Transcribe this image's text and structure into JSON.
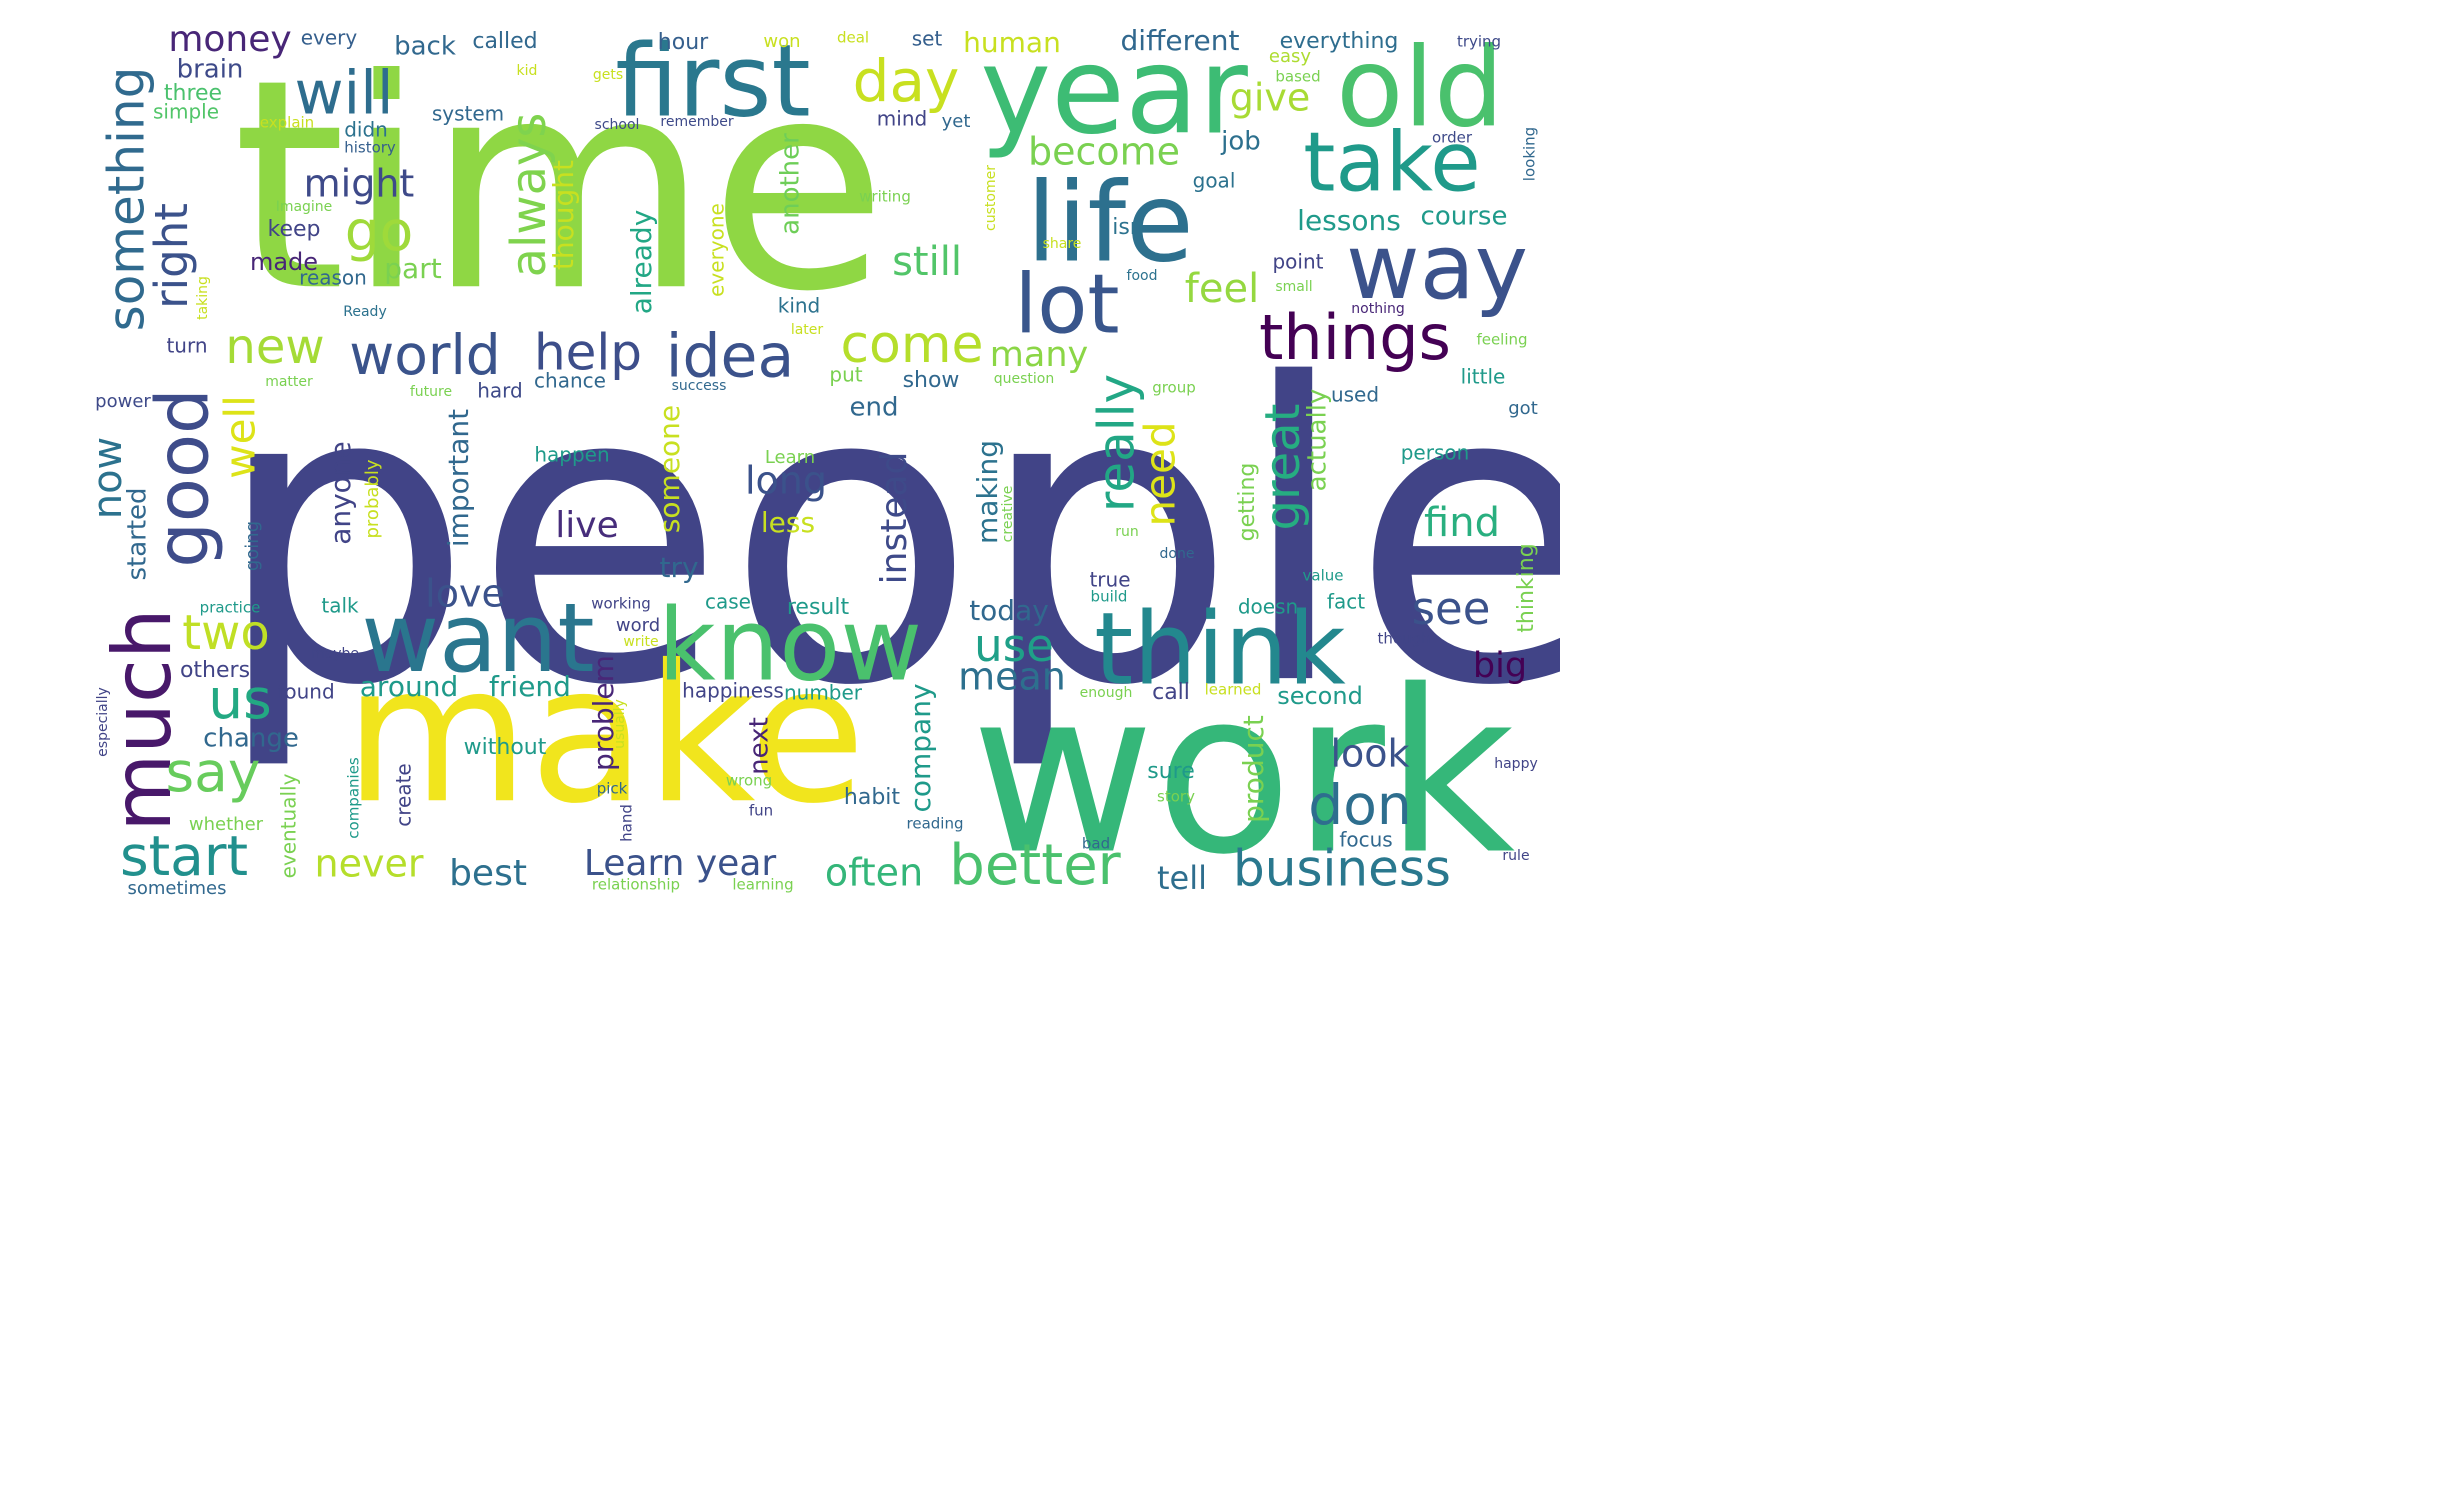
{
  "words": [
    {
      "text": "people",
      "color": "#414487"
    },
    {
      "text": "time",
      "color": "#8fd744"
    },
    {
      "text": "work",
      "color": "#35b779"
    },
    {
      "text": "make",
      "color": "#f1e51d"
    },
    {
      "text": "year",
      "color": "#3dbc74"
    },
    {
      "text": "old",
      "color": "#4ac16d"
    },
    {
      "text": "first",
      "color": "#2a788e"
    },
    {
      "text": "life",
      "color": "#2d708e"
    },
    {
      "text": "think",
      "color": "#23888e"
    },
    {
      "text": "know",
      "color": "#4ac16d"
    },
    {
      "text": "want",
      "color": "#2a768e"
    },
    {
      "text": "way",
      "color": "#3b528b"
    },
    {
      "text": "take",
      "color": "#1f9a8a"
    },
    {
      "text": "lot",
      "color": "#39568c"
    },
    {
      "text": "good",
      "color": "#3e4c8a"
    },
    {
      "text": "much",
      "color": "#48186a"
    },
    {
      "text": "things",
      "color": "#440154"
    },
    {
      "text": "world",
      "color": "#3a538b"
    },
    {
      "text": "idea",
      "color": "#3b528b"
    },
    {
      "text": "help",
      "color": "#3d4e8a"
    },
    {
      "text": "come",
      "color": "#b5de2b"
    },
    {
      "text": "will",
      "color": "#2e6d8e"
    },
    {
      "text": "day",
      "color": "#c8e020"
    },
    {
      "text": "start",
      "color": "#21908d"
    },
    {
      "text": "better",
      "color": "#4ac16d"
    },
    {
      "text": "business",
      "color": "#2a788e"
    },
    {
      "text": "don",
      "color": "#2e6e8e"
    },
    {
      "text": "go",
      "color": "#9fda3a"
    },
    {
      "text": "us",
      "color": "#23a983"
    },
    {
      "text": "say",
      "color": "#67cc5c"
    },
    {
      "text": "two",
      "color": "#c0df25"
    },
    {
      "text": "new",
      "color": "#a5db36"
    },
    {
      "text": "really",
      "color": "#22a785"
    },
    {
      "text": "need",
      "color": "#dde318"
    },
    {
      "text": "great",
      "color": "#26ad81"
    },
    {
      "text": "use",
      "color": "#1fa088"
    },
    {
      "text": "see",
      "color": "#3b528b"
    },
    {
      "text": "always",
      "color": "#7fd34e"
    },
    {
      "text": "something",
      "color": "#306a8e"
    },
    {
      "text": "right",
      "color": "#3b528b"
    },
    {
      "text": "well",
      "color": "#dde318"
    },
    {
      "text": "now",
      "color": "#2c728e"
    },
    {
      "text": "might",
      "color": "#3e4a89"
    },
    {
      "text": "still",
      "color": "#52c569"
    },
    {
      "text": "become",
      "color": "#7ad151"
    },
    {
      "text": "give",
      "color": "#a8db34"
    },
    {
      "text": "feel",
      "color": "#95d840"
    },
    {
      "text": "many",
      "color": "#8bd646"
    },
    {
      "text": "mean",
      "color": "#2d708e"
    },
    {
      "text": "find",
      "color": "#29af7f"
    },
    {
      "text": "big",
      "color": "#440154"
    },
    {
      "text": "look",
      "color": "#3b528b"
    },
    {
      "text": "long",
      "color": "#3b528b"
    },
    {
      "text": "live",
      "color": "#472d7b"
    },
    {
      "text": "love",
      "color": "#3b528b"
    },
    {
      "text": "never",
      "color": "#b5de2b"
    },
    {
      "text": "best",
      "color": "#2d708e"
    },
    {
      "text": "often",
      "color": "#34b679"
    },
    {
      "text": "tell",
      "color": "#2e6e8e"
    },
    {
      "text": "Learn year",
      "color": "#3b528b"
    },
    {
      "text": "instead",
      "color": "#3e4a89"
    },
    {
      "text": "money",
      "color": "#482677"
    },
    {
      "text": "brain",
      "color": "#3e4a89"
    },
    {
      "text": "different",
      "color": "#31688e"
    },
    {
      "text": "everything",
      "color": "#2e6d8e"
    },
    {
      "text": "human",
      "color": "#c8e020"
    },
    {
      "text": "back",
      "color": "#31688e"
    },
    {
      "text": "called",
      "color": "#31688e"
    },
    {
      "text": "hour",
      "color": "#355f8d"
    },
    {
      "text": "every",
      "color": "#355f8d"
    },
    {
      "text": "won",
      "color": "#c8e020"
    },
    {
      "text": "deal",
      "color": "#c8e020"
    },
    {
      "text": "set",
      "color": "#355f8d"
    },
    {
      "text": "trying",
      "color": "#3e4a89"
    },
    {
      "text": "easy",
      "color": "#addc30"
    },
    {
      "text": "based",
      "color": "#7ad151"
    },
    {
      "text": "three",
      "color": "#4ac16d"
    },
    {
      "text": "simple",
      "color": "#52c569"
    },
    {
      "text": "explain",
      "color": "#c8e020"
    },
    {
      "text": "kid",
      "color": "#c8e020"
    },
    {
      "text": "gets",
      "color": "#c8e020"
    },
    {
      "text": "system",
      "color": "#31688e"
    },
    {
      "text": "didn",
      "color": "#2c728e"
    },
    {
      "text": "history",
      "color": "#355f8d"
    },
    {
      "text": "school",
      "color": "#3e4a89"
    },
    {
      "text": "remember",
      "color": "#3e4a89"
    },
    {
      "text": "mind",
      "color": "#414487"
    },
    {
      "text": "yet",
      "color": "#31688e"
    },
    {
      "text": "job",
      "color": "#2d708e"
    },
    {
      "text": "order",
      "color": "#3e4a89"
    },
    {
      "text": "looking",
      "color": "#31688e"
    },
    {
      "text": "Imagine",
      "color": "#7ad151"
    },
    {
      "text": "thought",
      "color": "#c8e020"
    },
    {
      "text": "already",
      "color": "#22a785"
    },
    {
      "text": "everyone",
      "color": "#c8e020"
    },
    {
      "text": "another",
      "color": "#6ece58"
    },
    {
      "text": "writing",
      "color": "#7ad151"
    },
    {
      "text": "customer",
      "color": "#c8e020"
    },
    {
      "text": "goal",
      "color": "#2c728e"
    },
    {
      "text": "isn",
      "color": "#2c728e"
    },
    {
      "text": "share",
      "color": "#c8e020"
    },
    {
      "text": "lessons",
      "color": "#1f9a8a"
    },
    {
      "text": "course",
      "color": "#1f9a8a"
    },
    {
      "text": "point",
      "color": "#414487"
    },
    {
      "text": "small",
      "color": "#7ad151"
    },
    {
      "text": "food",
      "color": "#2c728e"
    },
    {
      "text": "keep",
      "color": "#414487"
    },
    {
      "text": "made",
      "color": "#482677"
    },
    {
      "text": "reason",
      "color": "#31688e"
    },
    {
      "text": "part",
      "color": "#7ad151"
    },
    {
      "text": "taking",
      "color": "#c8e020"
    },
    {
      "text": "Ready",
      "color": "#2c728e"
    },
    {
      "text": "kind",
      "color": "#2c728e"
    },
    {
      "text": "later",
      "color": "#c8e020"
    },
    {
      "text": "nothing",
      "color": "#482677"
    },
    {
      "text": "feeling",
      "color": "#7ad151"
    },
    {
      "text": "turn",
      "color": "#414487"
    },
    {
      "text": "matter",
      "color": "#7ad151"
    },
    {
      "text": "future",
      "color": "#7ad151"
    },
    {
      "text": "hard",
      "color": "#3e4a89"
    },
    {
      "text": "chance",
      "color": "#31688e"
    },
    {
      "text": "success",
      "color": "#31688e"
    },
    {
      "text": "put",
      "color": "#7ad151"
    },
    {
      "text": "show",
      "color": "#31688e"
    },
    {
      "text": "question",
      "color": "#7ad151"
    },
    {
      "text": "group",
      "color": "#7ad151"
    },
    {
      "text": "used",
      "color": "#31688e"
    },
    {
      "text": "little",
      "color": "#1f9a8a"
    },
    {
      "text": "got",
      "color": "#31688e"
    },
    {
      "text": "power",
      "color": "#3e4a89"
    },
    {
      "text": "started",
      "color": "#31688e"
    },
    {
      "text": "end",
      "color": "#31688e"
    },
    {
      "text": "important",
      "color": "#31688e"
    },
    {
      "text": "anyone",
      "color": "#414487"
    },
    {
      "text": "probably",
      "color": "#c8e020"
    },
    {
      "text": "someone",
      "color": "#c8e020"
    },
    {
      "text": "happen",
      "color": "#1f9a8a"
    },
    {
      "text": "Learn",
      "color": "#7ad151"
    },
    {
      "text": "less",
      "color": "#c8e020"
    },
    {
      "text": "making",
      "color": "#2c728e"
    },
    {
      "text": "creative",
      "color": "#7ad151"
    },
    {
      "text": "run",
      "color": "#7ad151"
    },
    {
      "text": "done",
      "color": "#31688e"
    },
    {
      "text": "getting",
      "color": "#7ad151"
    },
    {
      "text": "actually",
      "color": "#7ad151"
    },
    {
      "text": "person",
      "color": "#1f9a8a"
    },
    {
      "text": "going",
      "color": "#31688e"
    },
    {
      "text": "try",
      "color": "#31688e"
    },
    {
      "text": "today",
      "color": "#31688e"
    },
    {
      "text": "true",
      "color": "#414487"
    },
    {
      "text": "value",
      "color": "#1f9a8a"
    },
    {
      "text": "thinking",
      "color": "#7ad151"
    },
    {
      "text": "practice",
      "color": "#1f9a8a"
    },
    {
      "text": "talk",
      "color": "#1f9a8a"
    },
    {
      "text": "working",
      "color": "#414487"
    },
    {
      "text": "case",
      "color": "#1f9a8a"
    },
    {
      "text": "result",
      "color": "#1f9a8a"
    },
    {
      "text": "build",
      "color": "#1f9a8a"
    },
    {
      "text": "doesn",
      "color": "#1f9a8a"
    },
    {
      "text": "fact",
      "color": "#1f9a8a"
    },
    {
      "text": "word",
      "color": "#414487"
    },
    {
      "text": "write",
      "color": "#c8e020"
    },
    {
      "text": "though",
      "color": "#414487"
    },
    {
      "text": "others",
      "color": "#414487"
    },
    {
      "text": "maybe",
      "color": "#414487"
    },
    {
      "text": "found",
      "color": "#414487"
    },
    {
      "text": "around",
      "color": "#1f9a8a"
    },
    {
      "text": "friend",
      "color": "#1f9a8a"
    },
    {
      "text": "problem",
      "color": "#482677"
    },
    {
      "text": "usually",
      "color": "#c8e020"
    },
    {
      "text": "happiness",
      "color": "#414487"
    },
    {
      "text": "number",
      "color": "#1f9a8a"
    },
    {
      "text": "company",
      "color": "#1f9a8a"
    },
    {
      "text": "enough",
      "color": "#7ad151"
    },
    {
      "text": "call",
      "color": "#414487"
    },
    {
      "text": "learned",
      "color": "#c8e020"
    },
    {
      "text": "second",
      "color": "#1f9a8a"
    },
    {
      "text": "especially",
      "color": "#414487"
    },
    {
      "text": "change",
      "color": "#31688e"
    },
    {
      "text": "without",
      "color": "#1f9a8a"
    },
    {
      "text": "next",
      "color": "#482677"
    },
    {
      "text": "wrong",
      "color": "#7ad151"
    },
    {
      "text": "product",
      "color": "#7ad151"
    },
    {
      "text": "sure",
      "color": "#1f9a8a"
    },
    {
      "text": "happy",
      "color": "#414487"
    },
    {
      "text": "companies",
      "color": "#1f9a8a"
    },
    {
      "text": "create",
      "color": "#414487"
    },
    {
      "text": "pick",
      "color": "#31688e"
    },
    {
      "text": "habit",
      "color": "#31688e"
    },
    {
      "text": "story",
      "color": "#7ad151"
    },
    {
      "text": "eventually",
      "color": "#7ad151"
    },
    {
      "text": "whether",
      "color": "#7ad151"
    },
    {
      "text": "hand",
      "color": "#414487"
    },
    {
      "text": "fun",
      "color": "#414487"
    },
    {
      "text": "reading",
      "color": "#31688e"
    },
    {
      "text": "bad",
      "color": "#31688e"
    },
    {
      "text": "focus",
      "color": "#31688e"
    },
    {
      "text": "rule",
      "color": "#414487"
    },
    {
      "text": "sometimes",
      "color": "#31688e"
    },
    {
      "text": "relationship",
      "color": "#7ad151"
    },
    {
      "text": "learning",
      "color": "#7ad151"
    }
  ]
}
